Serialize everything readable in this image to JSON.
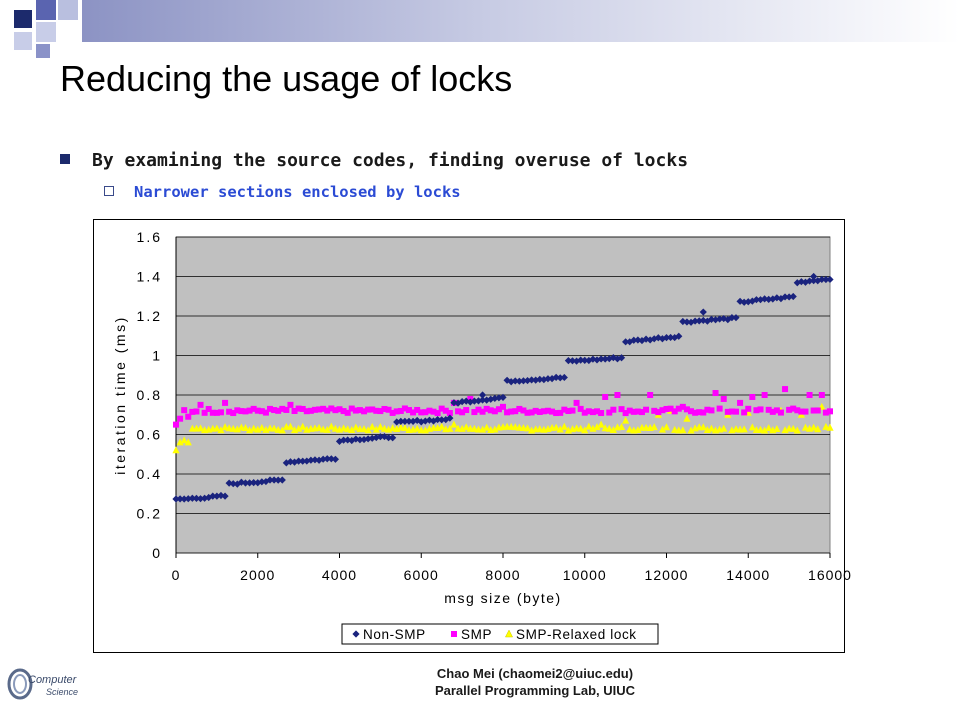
{
  "slide": {
    "title": "Reducing the usage of locks",
    "bullet_1": "By examining the source codes, finding overuse of locks",
    "bullet_2": "Narrower sections enclosed by locks",
    "footer_line_1": "Chao Mei (chaomei2@uiuc.edu)",
    "footer_line_2": "Parallel Programming Lab, UIUC",
    "logo_text_1": "Computer",
    "logo_text_2": "Science",
    "colors": {
      "accent": "#1c2a6c",
      "sub_bullet": "#2b4bd4"
    }
  },
  "chart_data": {
    "type": "scatter",
    "xlabel": "msg size (byte)",
    "ylabel": "iteration time (ms)",
    "xlim": [
      0,
      16000
    ],
    "ylim": [
      0,
      1.6
    ],
    "xticks": [
      0,
      2000,
      4000,
      6000,
      8000,
      10000,
      12000,
      14000,
      16000
    ],
    "yticks": [
      0,
      0.2,
      0.4,
      0.6,
      0.8,
      1,
      1.2,
      1.4,
      1.6
    ],
    "ytick_labels": [
      "0",
      "0.2",
      "0.4",
      "0.6",
      "0.8",
      "1",
      "1.2",
      "1.4",
      "1.6"
    ],
    "grid": "horizontal",
    "plot_background": "#c0c0c0",
    "legend_position": "bottom",
    "series": [
      {
        "name": "Non-SMP",
        "marker": "diamond",
        "color": "#1a237e",
        "step_x": 100,
        "start_x": 0,
        "plateaus": [
          {
            "x_from": 0,
            "x_to": 1300,
            "y_from": 0.27,
            "y_to": 0.29
          },
          {
            "x_from": 1300,
            "x_to": 2650,
            "y_from": 0.35,
            "y_to": 0.37
          },
          {
            "x_from": 2650,
            "x_to": 4000,
            "y_from": 0.46,
            "y_to": 0.48
          },
          {
            "x_from": 4000,
            "x_to": 5400,
            "y_from": 0.57,
            "y_to": 0.59
          },
          {
            "x_from": 5400,
            "x_to": 6800,
            "y_from": 0.66,
            "y_to": 0.68
          },
          {
            "x_from": 6800,
            "x_to": 8100,
            "y_from": 0.76,
            "y_to": 0.79
          },
          {
            "x_from": 8100,
            "x_to": 9600,
            "y_from": 0.87,
            "y_to": 0.89
          },
          {
            "x_from": 9600,
            "x_to": 11000,
            "y_from": 0.97,
            "y_to": 0.99
          },
          {
            "x_from": 11000,
            "x_to": 12400,
            "y_from": 1.07,
            "y_to": 1.1
          },
          {
            "x_from": 12400,
            "x_to": 13800,
            "y_from": 1.17,
            "y_to": 1.19
          },
          {
            "x_from": 13800,
            "x_to": 15200,
            "y_from": 1.27,
            "y_to": 1.3
          },
          {
            "x_from": 15200,
            "x_to": 16000,
            "y_from": 1.37,
            "y_to": 1.39
          }
        ],
        "outliers": [
          [
            7500,
            0.8
          ],
          [
            12900,
            1.22
          ],
          [
            15600,
            1.4
          ]
        ]
      },
      {
        "name": "SMP",
        "marker": "square",
        "color": "#ff00ff",
        "step_x": 100,
        "start_x": 0,
        "base_y": 0.72,
        "noise": 0.012,
        "outliers": [
          [
            0,
            0.65
          ],
          [
            100,
            0.68
          ],
          [
            300,
            0.69
          ],
          [
            600,
            0.75
          ],
          [
            1200,
            0.76
          ],
          [
            2800,
            0.75
          ],
          [
            6800,
            0.76
          ],
          [
            7200,
            0.78
          ],
          [
            8000,
            0.74
          ],
          [
            9800,
            0.76
          ],
          [
            10500,
            0.79
          ],
          [
            10800,
            0.8
          ],
          [
            11600,
            0.8
          ],
          [
            12400,
            0.74
          ],
          [
            13200,
            0.81
          ],
          [
            13400,
            0.78
          ],
          [
            13800,
            0.76
          ],
          [
            14100,
            0.79
          ],
          [
            14400,
            0.8
          ],
          [
            14900,
            0.83
          ],
          [
            15500,
            0.8
          ],
          [
            15800,
            0.8
          ]
        ]
      },
      {
        "name": "SMP-Relaxed lock",
        "marker": "triangle",
        "color": "#ffff00",
        "step_x": 100,
        "start_x": 0,
        "base_y": 0.63,
        "noise": 0.01,
        "outliers": [
          [
            0,
            0.52
          ],
          [
            100,
            0.56
          ],
          [
            200,
            0.57
          ],
          [
            300,
            0.56
          ],
          [
            500,
            0.63
          ],
          [
            6800,
            0.65
          ],
          [
            10400,
            0.65
          ],
          [
            11000,
            0.67
          ],
          [
            11800,
            0.7
          ],
          [
            12100,
            0.72
          ],
          [
            12500,
            0.68
          ],
          [
            13500,
            0.7
          ],
          [
            14000,
            0.71
          ],
          [
            14800,
            0.72
          ],
          [
            15300,
            0.7
          ],
          [
            15800,
            0.74
          ]
        ]
      }
    ]
  }
}
